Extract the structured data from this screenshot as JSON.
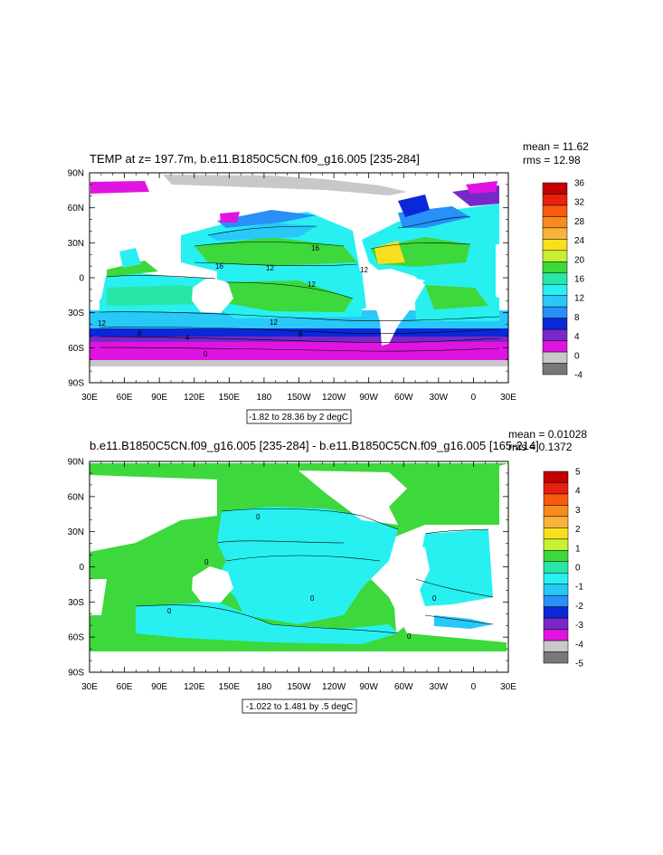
{
  "panel1": {
    "title": "TEMP at z= 197.7m, b.e11.B1850C5CN.f09_g16.005 [235-284]",
    "mean": "mean = 11.62",
    "rms": "rms = 12.98",
    "range_note": "-1.82 to 28.36 by 2 degC",
    "lat_labels": [
      "90N",
      "60N",
      "30N",
      "0",
      "30S",
      "60S",
      "90S"
    ],
    "lon_labels": [
      "30E",
      "60E",
      "90E",
      "120E",
      "150E",
      "180",
      "150W",
      "120W",
      "90W",
      "60W",
      "30W",
      "0",
      "30E"
    ],
    "contour_labels": [
      "16",
      "16",
      "12",
      "12",
      "12",
      "12",
      "8",
      "4",
      "0",
      "12",
      "8"
    ],
    "colorbar": {
      "labels": [
        "36",
        "32",
        "28",
        "24",
        "20",
        "16",
        "12",
        "8",
        "4",
        "0",
        "-4"
      ],
      "colors": [
        "#c40000",
        "#e8200e",
        "#f85a0e",
        "#f88a1e",
        "#f8b43a",
        "#f8e020",
        "#c8f030",
        "#3cd83c",
        "#28e6a8",
        "#28f0f0",
        "#28c8f8",
        "#2890f8",
        "#0a28d8",
        "#7828c8",
        "#e014e0",
        "#c8c8c8",
        "#787878"
      ]
    }
  },
  "panel2": {
    "title": "b.e11.B1850C5CN.f09_g16.005 [235-284] - b.e11.B1850C5CN.f09_g16.005 [165-214]",
    "mean": "mean = 0.01028",
    "rms": "rms = 0.1372",
    "range_note": "-1.022 to 1.481 by .5 degC",
    "lat_labels": [
      "90N",
      "60N",
      "30N",
      "0",
      "30S",
      "60S",
      "90S"
    ],
    "lon_labels": [
      "30E",
      "60E",
      "90E",
      "120E",
      "150E",
      "180",
      "150W",
      "120W",
      "90W",
      "60W",
      "30W",
      "0",
      "30E"
    ],
    "contour_labels": [
      "0",
      "0",
      "0",
      "0",
      "0",
      "0"
    ],
    "colorbar": {
      "labels": [
        "5",
        "4",
        "3",
        "2",
        "1",
        "0",
        "-1",
        "-2",
        "-3",
        "-4",
        "-5"
      ],
      "colors": [
        "#c40000",
        "#e8200e",
        "#f85a0e",
        "#f88a1e",
        "#f8b43a",
        "#f8e020",
        "#c8f030",
        "#3cd83c",
        "#28e6a8",
        "#28f0f0",
        "#28c8f8",
        "#2890f8",
        "#0a28d8",
        "#7828c8",
        "#e014e0",
        "#c8c8c8",
        "#787878"
      ]
    }
  },
  "colors": {
    "land": "#ffffff",
    "ice": "#c8c8c8",
    "green": "#3cd83c",
    "cyan": "#28f0f0"
  }
}
